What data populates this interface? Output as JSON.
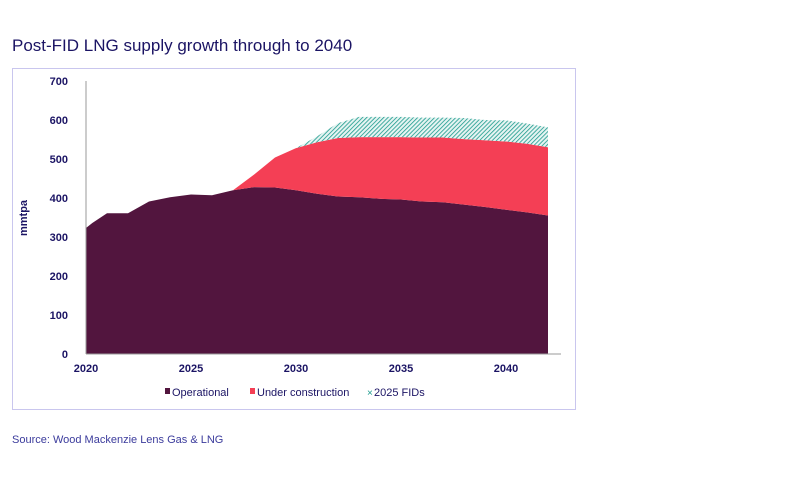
{
  "title": "Post-FID LNG supply growth through to 2040",
  "source": "Source: Wood Mackenzie Lens Gas & LNG",
  "chart_data": {
    "type": "area",
    "stacked": true,
    "ylabel": "mmtpa",
    "xlabel": "",
    "ylim": [
      0,
      700
    ],
    "yticks": [
      "0",
      "100",
      "200",
      "300",
      "400",
      "500",
      "600",
      "700"
    ],
    "xticks": [
      "2020",
      "2025",
      "2030",
      "2035",
      "2040"
    ],
    "x": [
      2020,
      2020.3,
      2021,
      2022,
      2023,
      2024,
      2025,
      2026,
      2027,
      2028,
      2029,
      2030,
      2031,
      2032,
      2033,
      2034,
      2035,
      2036,
      2037,
      2038,
      2039,
      2040,
      2041,
      2042
    ],
    "series": [
      {
        "name": "Operational",
        "color": "#52153e",
        "values": [
          323,
          336,
          361,
          361,
          391,
          402,
          409,
          407,
          420,
          428,
          427,
          420,
          411,
          404,
          402,
          398,
          396,
          391,
          389,
          383,
          377,
          370,
          363,
          355
        ]
      },
      {
        "name": "Under construction",
        "color": "#f43f55",
        "values": [
          0,
          0,
          0,
          0,
          0,
          0,
          0,
          0,
          0,
          32,
          77,
          108,
          132,
          150,
          154,
          158,
          160,
          164,
          166,
          168,
          171,
          175,
          176,
          175
        ]
      },
      {
        "name": "2025 FIDs",
        "color": "#1a9a8c",
        "pattern": "hatched",
        "values": [
          0,
          0,
          0,
          0,
          0,
          0,
          0,
          0,
          0,
          0,
          0,
          0,
          15,
          38,
          52,
          52,
          52,
          51,
          51,
          54,
          52,
          54,
          52,
          51
        ]
      }
    ],
    "legend": "bottom"
  }
}
